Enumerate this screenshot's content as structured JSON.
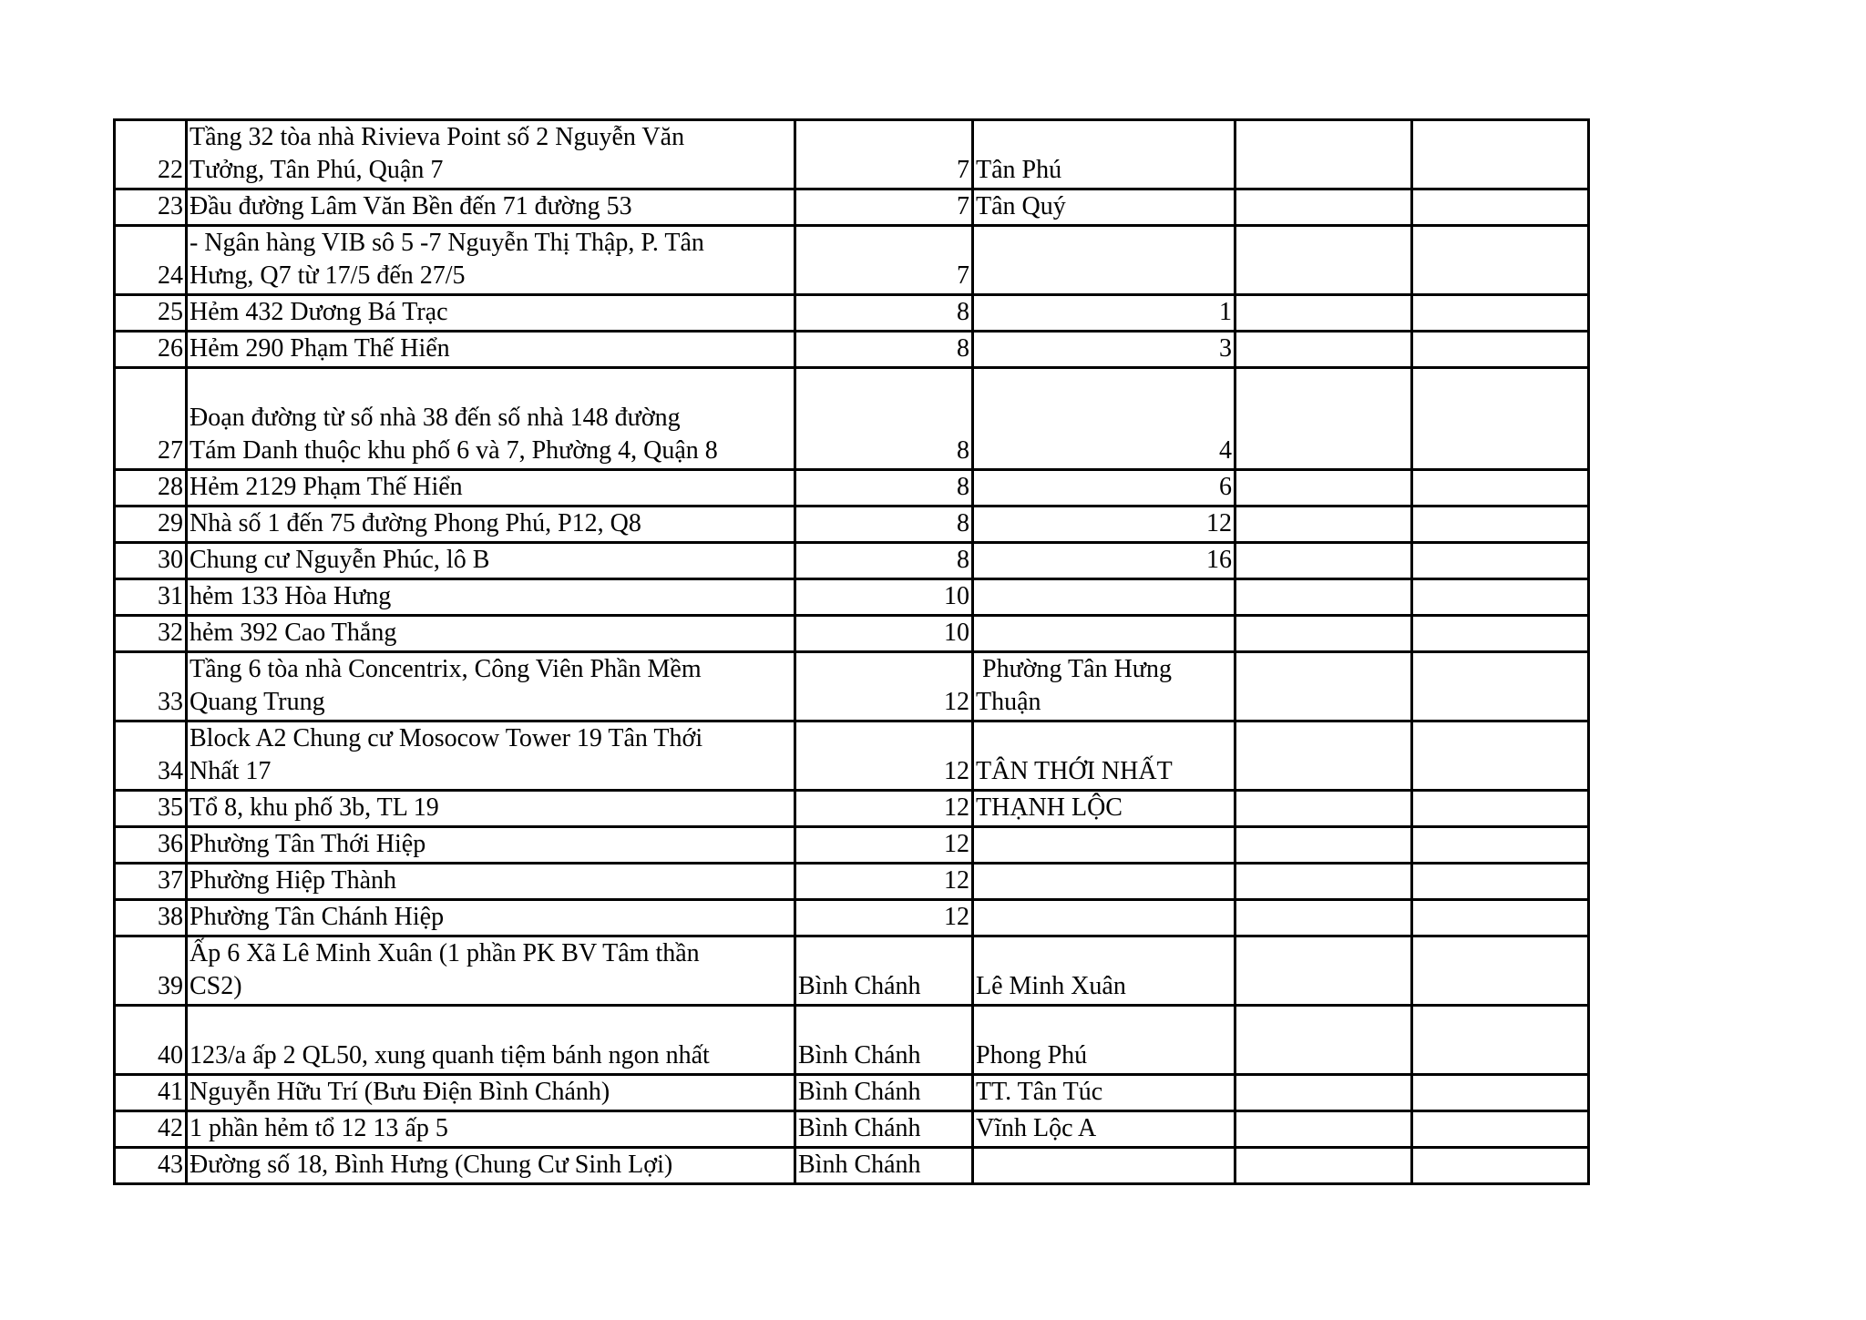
{
  "colors": {
    "background": "#ffffff",
    "grid": "#000000",
    "text": "#000000"
  },
  "table": {
    "rows": [
      {
        "no": "22",
        "description": "Tầng 32 tòa nhà Rivieva Point số 2 Nguyễn Văn\nTưởng, Tân Phú, Quận 7",
        "district": "7",
        "ward": "Tân Phú"
      },
      {
        "no": "23",
        "description": "Đầu đường Lâm Văn Bền đến 71 đường 53",
        "district": "7",
        "ward": "Tân Quý"
      },
      {
        "no": "24",
        "description": "- Ngân hàng VIB sô 5 -7 Nguyễn Thị Thập, P. Tân\nHưng, Q7 từ 17/5 đến 27/5",
        "district": "7",
        "ward": ""
      },
      {
        "no": "25",
        "description": "Hẻm 432 Dương Bá Trạc",
        "district": "8",
        "ward": "1"
      },
      {
        "no": "26",
        "description": "Hẻm 290 Phạm Thế Hiển",
        "district": "8",
        "ward": "3"
      },
      {
        "no": "27",
        "description": "\nĐoạn đường từ số nhà 38 đến số nhà 148 đường\nTám Danh thuộc khu phố 6 và 7, Phường 4, Quận 8",
        "district": "8",
        "ward": "4"
      },
      {
        "no": "28",
        "description": "Hẻm 2129 Phạm Thế Hiển",
        "district": "8",
        "ward": "6"
      },
      {
        "no": "29",
        "description": "Nhà số 1 đến 75 đường Phong Phú, P12, Q8",
        "district": "8",
        "ward": "12"
      },
      {
        "no": "30",
        "description": "Chung cư Nguyễn Phúc, lô B",
        "district": "8",
        "ward": "16"
      },
      {
        "no": "31",
        "description": "hẻm 133 Hòa Hưng",
        "district": "10",
        "ward": ""
      },
      {
        "no": "32",
        "description": "hẻm 392 Cao Thắng",
        "district": "10",
        "ward": ""
      },
      {
        "no": "33",
        "description": "Tầng 6 tòa nhà Concentrix, Công Viên Phần Mềm\nQuang Trung",
        "district": "12",
        "ward": " Phường Tân Hưng\nThuận"
      },
      {
        "no": "34",
        "description": "Block A2 Chung cư Mosocow Tower 19 Tân Thới\nNhất 17",
        "district": "12",
        "ward": "TÂN THỚI NHẤT"
      },
      {
        "no": "35",
        "description": "Tổ 8, khu phố 3b, TL 19",
        "district": "12",
        "ward": "THẠNH LỘC"
      },
      {
        "no": "36",
        "description": "Phường Tân Thới Hiệp",
        "district": "12",
        "ward": ""
      },
      {
        "no": "37",
        "description": "Phường Hiệp Thành",
        "district": "12",
        "ward": ""
      },
      {
        "no": "38",
        "description": "Phường Tân Chánh Hiệp",
        "district": "12",
        "ward": ""
      },
      {
        "no": "39",
        "description": "Ấp 6 Xã Lê Minh Xuân (1 phần PK BV Tâm thần\nCS2)",
        "district": "Bình Chánh",
        "ward": "Lê Minh Xuân"
      },
      {
        "no": "40",
        "description": "\n123/a ấp 2 QL50, xung quanh tiệm bánh ngon nhất",
        "district": "Bình Chánh",
        "ward": "Phong Phú"
      },
      {
        "no": "41",
        "description": "Nguyễn Hữu Trí (Bưu Điện Bình Chánh)",
        "district": "Bình Chánh",
        "ward": "TT. Tân Túc"
      },
      {
        "no": "42",
        "description": "1 phần hẻm tổ 12 13 ấp 5",
        "district": "Bình Chánh",
        "ward": "Vĩnh Lộc A"
      },
      {
        "no": "43",
        "description": "Đường số 18, Bình Hưng (Chung Cư Sinh Lợi)",
        "district": "Bình Chánh",
        "ward": ""
      }
    ]
  }
}
